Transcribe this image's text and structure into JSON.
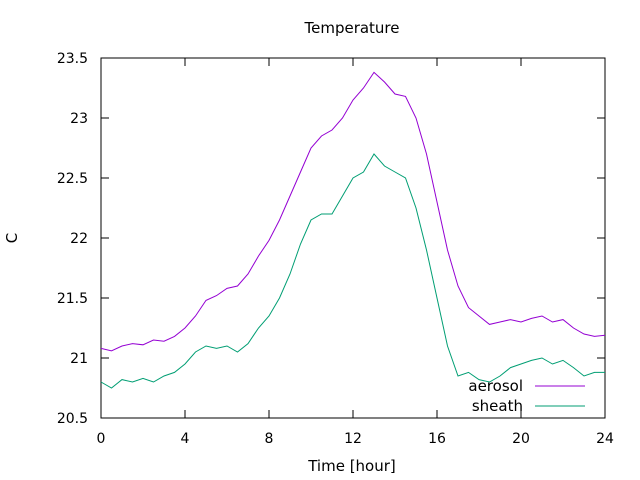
{
  "chart_data": {
    "type": "line",
    "title": "Temperature",
    "xlabel": "Time [hour]",
    "ylabel": "C",
    "xlim": [
      0,
      24
    ],
    "ylim": [
      20.5,
      23.5
    ],
    "xticks": [
      0,
      4,
      8,
      12,
      16,
      20,
      24
    ],
    "yticks": [
      20.5,
      21,
      21.5,
      22,
      22.5,
      23,
      23.5
    ],
    "ytick_labels": [
      "20.5",
      "21",
      "21.5",
      "22",
      "22.5",
      "23",
      "23.5"
    ],
    "grid": false,
    "legend_position": "bottom-right",
    "series": [
      {
        "name": "aerosol",
        "color": "#9400d3",
        "x": [
          0,
          0.5,
          1,
          1.5,
          2,
          2.5,
          3,
          3.5,
          4,
          4.5,
          5,
          5.5,
          6,
          6.5,
          7,
          7.5,
          8,
          8.5,
          9,
          9.5,
          10,
          10.5,
          11,
          11.5,
          12,
          12.5,
          13,
          13.5,
          14,
          14.5,
          15,
          15.5,
          16,
          16.5,
          17,
          17.5,
          18,
          18.5,
          19,
          19.5,
          20,
          20.5,
          21,
          21.5,
          22,
          22.5,
          23,
          23.5,
          24
        ],
        "y": [
          21.08,
          21.06,
          21.1,
          21.12,
          21.11,
          21.15,
          21.14,
          21.18,
          21.25,
          21.35,
          21.48,
          21.52,
          21.58,
          21.6,
          21.7,
          21.85,
          21.98,
          22.15,
          22.35,
          22.55,
          22.75,
          22.85,
          22.9,
          23.0,
          23.15,
          23.25,
          23.38,
          23.3,
          23.2,
          23.18,
          23.0,
          22.7,
          22.3,
          21.9,
          21.6,
          21.42,
          21.35,
          21.28,
          21.3,
          21.32,
          21.3,
          21.33,
          21.35,
          21.3,
          21.32,
          21.25,
          21.2,
          21.18,
          21.19
        ]
      },
      {
        "name": "sheath",
        "color": "#009e73",
        "x": [
          0,
          0.5,
          1,
          1.5,
          2,
          2.5,
          3,
          3.5,
          4,
          4.5,
          5,
          5.5,
          6,
          6.5,
          7,
          7.5,
          8,
          8.5,
          9,
          9.5,
          10,
          10.5,
          11,
          11.5,
          12,
          12.5,
          13,
          13.5,
          14,
          14.5,
          15,
          15.5,
          16,
          16.5,
          17,
          17.5,
          18,
          18.5,
          19,
          19.5,
          20,
          20.5,
          21,
          21.5,
          22,
          22.5,
          23,
          23.5,
          24
        ],
        "y": [
          20.8,
          20.75,
          20.82,
          20.8,
          20.83,
          20.8,
          20.85,
          20.88,
          20.95,
          21.05,
          21.1,
          21.08,
          21.1,
          21.05,
          21.12,
          21.25,
          21.35,
          21.5,
          21.7,
          21.95,
          22.15,
          22.2,
          22.2,
          22.35,
          22.5,
          22.55,
          22.7,
          22.6,
          22.55,
          22.5,
          22.25,
          21.9,
          21.5,
          21.1,
          20.85,
          20.88,
          20.82,
          20.8,
          20.85,
          20.92,
          20.95,
          20.98,
          21.0,
          20.95,
          20.98,
          20.92,
          20.85,
          20.88,
          20.88
        ]
      }
    ]
  }
}
